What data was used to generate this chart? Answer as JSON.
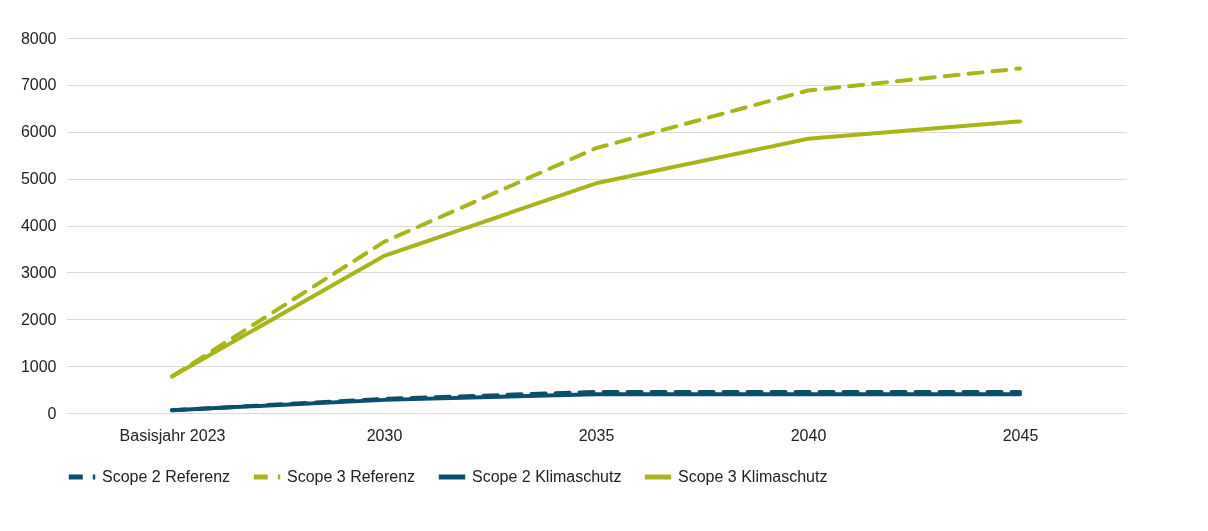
{
  "chart_data": {
    "type": "line",
    "categories": [
      "Basisjahr 2023",
      "2030",
      "2035",
      "2040",
      "2045"
    ],
    "series": [
      {
        "name": "Scope 2 Referenz",
        "color": "#0b4f6c",
        "line_style": "dashed",
        "values": [
          60,
          300,
          450,
          450,
          450
        ]
      },
      {
        "name": "Scope 3 Referenz",
        "color": "#a8b51a",
        "line_style": "dashed",
        "values": [
          780,
          3650,
          5650,
          6880,
          7350
        ]
      },
      {
        "name": "Scope 2 Klimaschutz",
        "color": "#0b4f6c",
        "line_style": "solid",
        "values": [
          60,
          280,
          400,
          400,
          400
        ]
      },
      {
        "name": "Scope 3 Klimaschutz",
        "color": "#a8b51a",
        "line_style": "solid",
        "values": [
          780,
          3350,
          4900,
          5850,
          6220
        ]
      }
    ],
    "ylim": [
      0,
      8000
    ],
    "yticks": [
      0,
      1000,
      2000,
      3000,
      4000,
      5000,
      6000,
      7000,
      8000
    ],
    "grid": "y",
    "legend": "bottom",
    "marker": "none"
  }
}
